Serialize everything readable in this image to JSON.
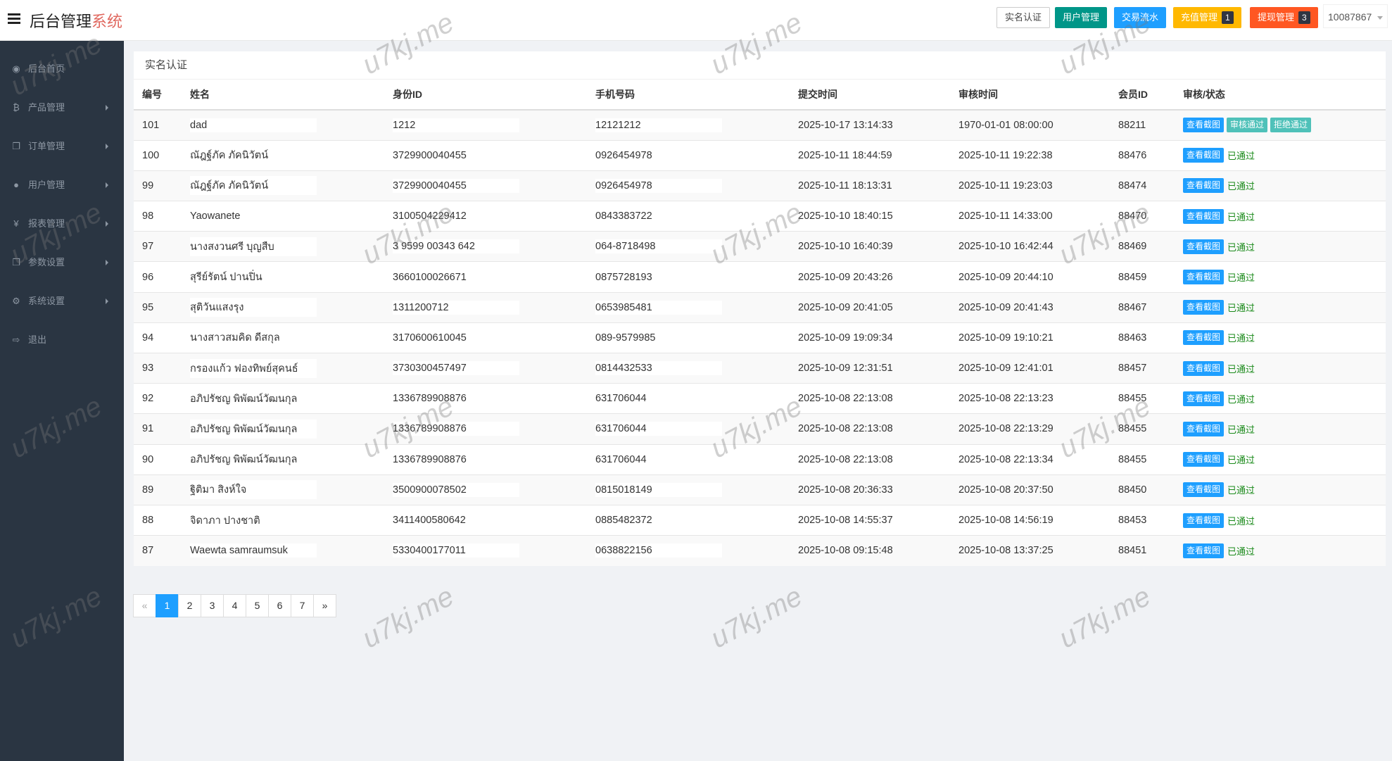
{
  "header": {
    "title_main": "后台管理",
    "title_accent": "系统",
    "buttons": [
      {
        "label": "实名认证",
        "color": "#ffffff"
      },
      {
        "label": "用户管理",
        "color": "#009688"
      },
      {
        "label": "交易流水",
        "color": "#1e9fff"
      },
      {
        "label": "充值管理",
        "color": "#ffb800",
        "badge": "1"
      },
      {
        "label": "提现管理",
        "color": "#ff5722",
        "badge": "3"
      }
    ],
    "user": "10087867"
  },
  "sidebar": {
    "items": [
      {
        "label": "后台首页",
        "icon": "dashboard-icon",
        "glyph": "◉",
        "arrow": false
      },
      {
        "label": "产品管理",
        "icon": "bitcoin-icon",
        "glyph": "₿",
        "arrow": true
      },
      {
        "label": "订单管理",
        "icon": "files-icon",
        "glyph": "❐",
        "arrow": true
      },
      {
        "label": "用户管理",
        "icon": "user-icon",
        "glyph": "●",
        "arrow": true
      },
      {
        "label": "报表管理",
        "icon": "yen-icon",
        "glyph": "¥",
        "arrow": true
      },
      {
        "label": "参数设置",
        "icon": "files-icon",
        "glyph": "❐",
        "arrow": true
      },
      {
        "label": "系统设置",
        "icon": "gears-icon",
        "glyph": "⚙",
        "arrow": true
      },
      {
        "label": "退出",
        "icon": "sign-out-icon",
        "glyph": "⇨",
        "arrow": false
      }
    ]
  },
  "panel": {
    "title": "实名认证",
    "columns": [
      "编号",
      "姓名",
      "身份ID",
      "手机号码",
      "提交时间",
      "审核时间",
      "会员ID",
      "审核/状态"
    ],
    "view_label": "查看截图",
    "approve_label": "审核通过",
    "reject_label": "拒绝通过",
    "rows": [
      {
        "id": "101",
        "name": "dad",
        "idno": "1212",
        "phone": "12121212",
        "submit": "2025-10-17 13:14:33",
        "review": "1970-01-01 08:00:00",
        "member": "88211",
        "status": ""
      },
      {
        "id": "100",
        "name": "ณัฎฐ์ภัค ภัคนิวัตน์",
        "idno": "3729900040455",
        "phone": "0926454978",
        "submit": "2025-10-11 18:44:59",
        "review": "2025-10-11 19:22:38",
        "member": "88476",
        "status": "已通过"
      },
      {
        "id": "99",
        "name": "ณัฎฐ์ภัค ภัคนิวัตน์",
        "idno": "3729900040455",
        "phone": "0926454978",
        "submit": "2025-10-11 18:13:31",
        "review": "2025-10-11 19:23:03",
        "member": "88474",
        "status": "已通过"
      },
      {
        "id": "98",
        "name": "Yaowanete",
        "idno": "3100504229412",
        "phone": "0843383722",
        "submit": "2025-10-10 18:40:15",
        "review": "2025-10-11 14:33:00",
        "member": "88470",
        "status": "已通过"
      },
      {
        "id": "97",
        "name": "นางสงวนศรี บุญสืบ",
        "idno": "3 9599 00343 642",
        "phone": "064-8718498",
        "submit": "2025-10-10 16:40:39",
        "review": "2025-10-10 16:42:44",
        "member": "88469",
        "status": "已通过"
      },
      {
        "id": "96",
        "name": "สุรีย์รัตน์ ปานปิ่น",
        "idno": "3660100026671",
        "phone": "0875728193",
        "submit": "2025-10-09 20:43:26",
        "review": "2025-10-09 20:44:10",
        "member": "88459",
        "status": "已通过"
      },
      {
        "id": "95",
        "name": "สุติวันแสงรุง",
        "idno": "1311200712",
        "phone": "0653985481",
        "submit": "2025-10-09 20:41:05",
        "review": "2025-10-09 20:41:43",
        "member": "88467",
        "status": "已通过"
      },
      {
        "id": "94",
        "name": "นางสาวสมคิด ดีสกุล",
        "idno": "3170600610045",
        "phone": "089-9579985",
        "submit": "2025-10-09 19:09:34",
        "review": "2025-10-09 19:10:21",
        "member": "88463",
        "status": "已通过"
      },
      {
        "id": "93",
        "name": "กรองแก้ว ฟองทิพย์สุคนธ์",
        "idno": "3730300457497",
        "phone": "0814432533",
        "submit": "2025-10-09 12:31:51",
        "review": "2025-10-09 12:41:01",
        "member": "88457",
        "status": "已通过"
      },
      {
        "id": "92",
        "name": "อภิปรัชญ พิพัฒน์วัฒนกุล",
        "idno": "1336789908876",
        "phone": "631706044",
        "submit": "2025-10-08 22:13:08",
        "review": "2025-10-08 22:13:23",
        "member": "88455",
        "status": "已通过"
      },
      {
        "id": "91",
        "name": "อภิปรัชญ พิพัฒน์วัฒนกุล",
        "idno": "1336789908876",
        "phone": "631706044",
        "submit": "2025-10-08 22:13:08",
        "review": "2025-10-08 22:13:29",
        "member": "88455",
        "status": "已通过"
      },
      {
        "id": "90",
        "name": "อภิปรัชญ พิพัฒน์วัฒนกุล",
        "idno": "1336789908876",
        "phone": "631706044",
        "submit": "2025-10-08 22:13:08",
        "review": "2025-10-08 22:13:34",
        "member": "88455",
        "status": "已通过"
      },
      {
        "id": "89",
        "name": "ฐิติมา  สิงห์ใจ",
        "idno": "3500900078502",
        "phone": "0815018149",
        "submit": "2025-10-08 20:36:33",
        "review": "2025-10-08 20:37:50",
        "member": "88450",
        "status": "已通过"
      },
      {
        "id": "88",
        "name": "จิดาภา  ปางชาติ",
        "idno": "3411400580642",
        "phone": "0885482372",
        "submit": "2025-10-08 14:55:37",
        "review": "2025-10-08 14:56:19",
        "member": "88453",
        "status": "已通过"
      },
      {
        "id": "87",
        "name": "Waewta samraumsuk",
        "idno": "5330400177011",
        "phone": "0638822156",
        "submit": "2025-10-08 09:15:48",
        "review": "2025-10-08 13:37:25",
        "member": "88451",
        "status": "已通过"
      }
    ]
  },
  "pagination": {
    "prev": "«",
    "next": "»",
    "pages": [
      "1",
      "2",
      "3",
      "4",
      "5",
      "6",
      "7"
    ],
    "current": "1"
  },
  "watermark": "u7kj.me"
}
